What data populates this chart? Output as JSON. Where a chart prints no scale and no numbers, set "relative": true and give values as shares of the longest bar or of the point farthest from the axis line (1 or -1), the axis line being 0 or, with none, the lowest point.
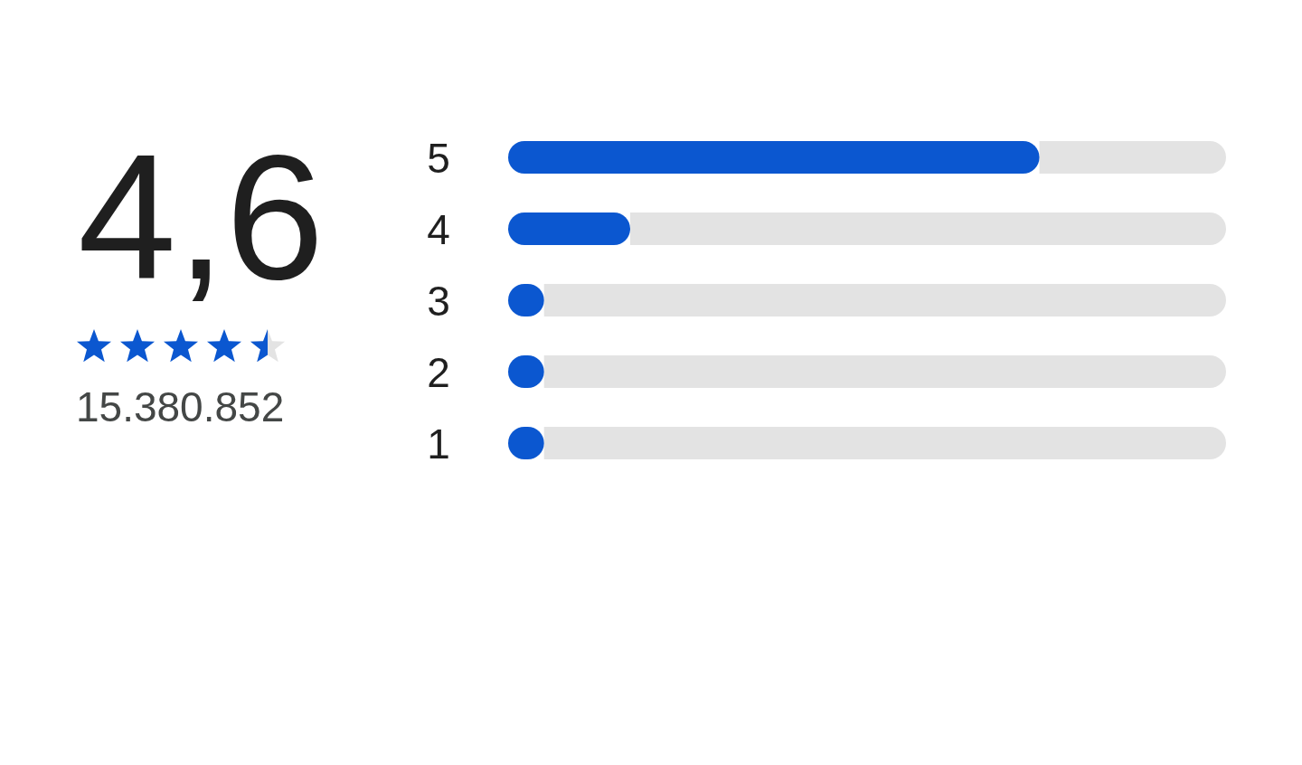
{
  "chart_data": {
    "type": "bar",
    "orientation": "horizontal",
    "stacked": true,
    "relative": true,
    "title": "4,6",
    "annotations": [
      "15.380.852"
    ],
    "categories": [
      "5",
      "4",
      "3",
      "2",
      "1"
    ],
    "series": [
      {
        "color": "#0b57d0",
        "values": [
          0.74,
          0.17,
          0.05,
          0.05,
          0.05
        ]
      },
      {
        "color": "#e3e3e3",
        "values": [
          0.26,
          0.83,
          0.95,
          0.95,
          0.95
        ]
      }
    ]
  }
}
